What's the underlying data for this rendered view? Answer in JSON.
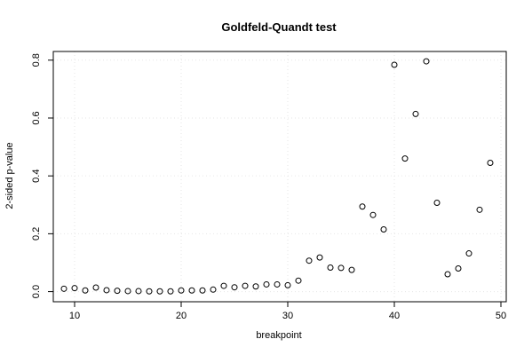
{
  "chart_data": {
    "type": "scatter",
    "title": "Goldfeld-Quandt test",
    "xlabel": "breakpoint",
    "ylabel": "2-sided p-value",
    "xlim": [
      8,
      50.5
    ],
    "ylim": [
      -0.035,
      0.83
    ],
    "xticks": [
      10,
      20,
      30,
      40,
      50
    ],
    "yticks": [
      0.0,
      0.2,
      0.4,
      0.6,
      0.8
    ],
    "ytick_labels": [
      "0.0",
      "0.2",
      "0.4",
      "0.6",
      "0.8"
    ],
    "grid": true,
    "legend": "none",
    "point_color": "#000000",
    "x": [
      9,
      10,
      11,
      12,
      13,
      14,
      15,
      16,
      17,
      18,
      19,
      20,
      21,
      22,
      23,
      24,
      25,
      26,
      27,
      28,
      29,
      30,
      31,
      32,
      33,
      34,
      35,
      36,
      37,
      38,
      39,
      40,
      41,
      42,
      43,
      44,
      45,
      46,
      47,
      48,
      49
    ],
    "y": [
      0.01,
      0.012,
      0.004,
      0.014,
      0.005,
      0.003,
      0.002,
      0.002,
      0.001,
      0.001,
      0.001,
      0.004,
      0.004,
      0.004,
      0.007,
      0.02,
      0.015,
      0.02,
      0.018,
      0.025,
      0.025,
      0.022,
      0.038,
      0.107,
      0.118,
      0.083,
      0.082,
      0.075,
      0.294,
      0.265,
      0.215,
      0.784,
      0.46,
      0.614,
      0.796,
      0.307,
      0.06,
      0.08,
      0.132,
      0.283,
      0.445
    ]
  }
}
